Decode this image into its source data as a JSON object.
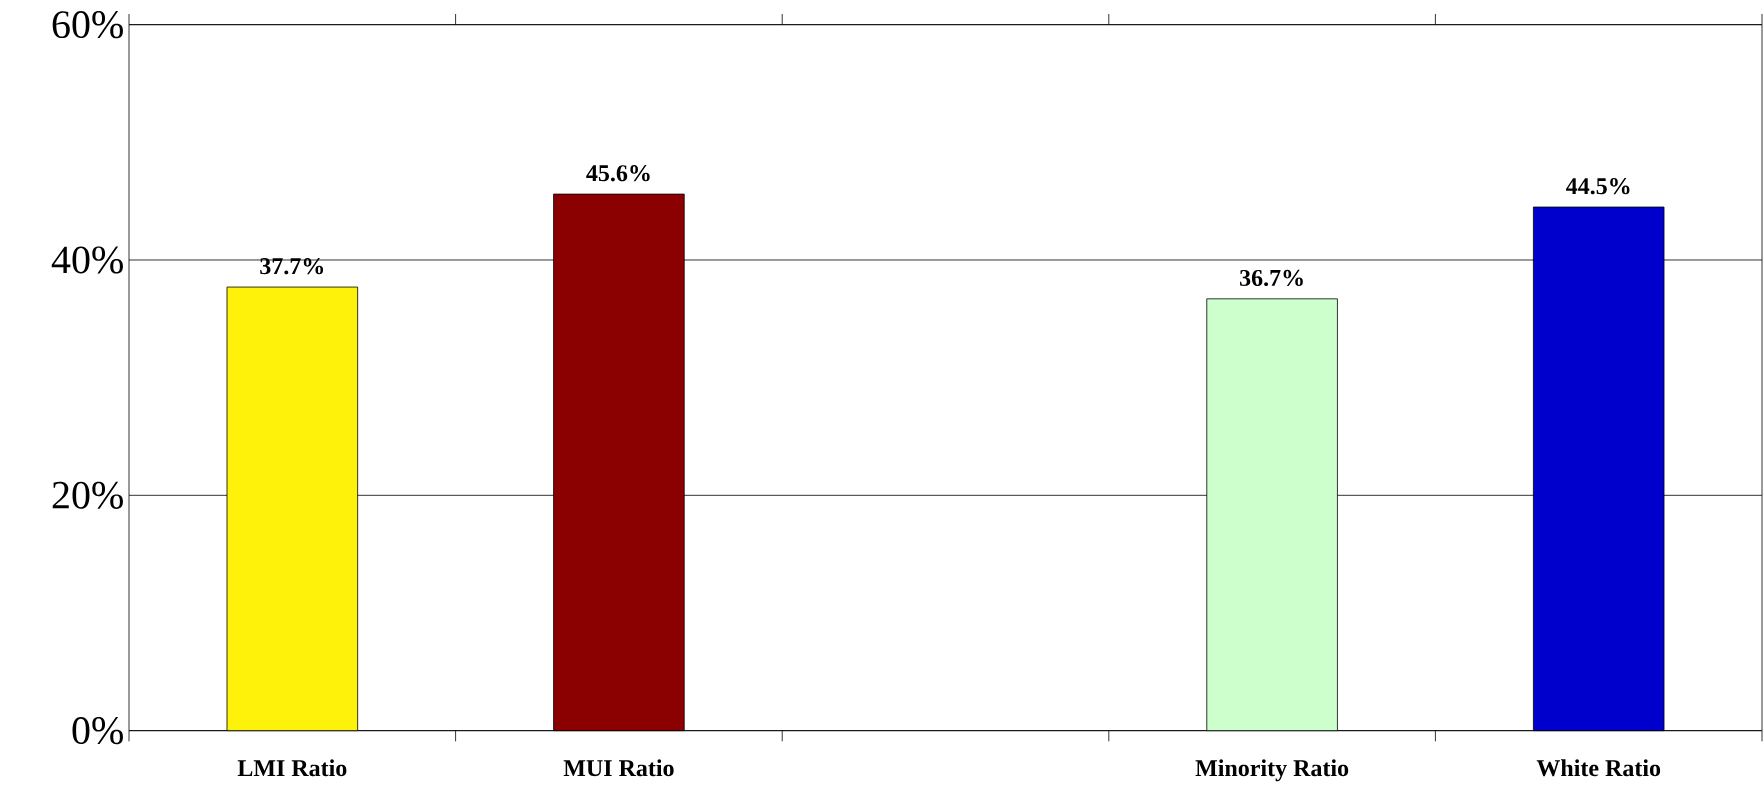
{
  "chart_data": {
    "type": "bar",
    "categories": [
      "LMI Ratio",
      "MUI Ratio",
      null,
      "Minority Ratio",
      "White Ratio"
    ],
    "values": [
      37.7,
      45.6,
      null,
      36.7,
      44.5
    ],
    "colors": [
      "#fff20a",
      "#8b0000",
      "#ffffff",
      "#ccffcc",
      "#0000cc"
    ],
    "value_labels": [
      "37.7%",
      "45.6%",
      null,
      "36.7%",
      "44.5%"
    ],
    "ylim": [
      0,
      60
    ],
    "yticks": [
      {
        "value": 0,
        "label": "0%"
      },
      {
        "value": 20,
        "label": "20%"
      },
      {
        "value": 40,
        "label": "40%"
      },
      {
        "value": 60,
        "label": "60%"
      }
    ],
    "grid": "y"
  }
}
